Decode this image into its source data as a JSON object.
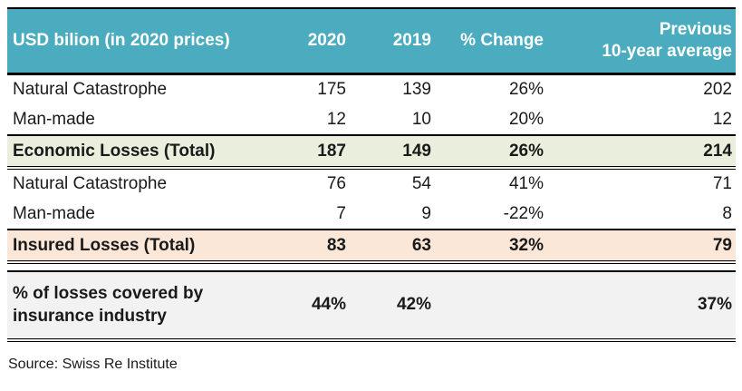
{
  "colors": {
    "header_bg": "#4AACBE",
    "header_text": "#FFFFFF",
    "economic_total_bg": "#EAEFDD",
    "insured_total_bg": "#FBE7D8",
    "coverage_bg": "#F2F2F2",
    "border": "#000000",
    "body_text": "#1A1A1A"
  },
  "source_note": "Source: Swiss Re Institute",
  "chart_data": {
    "type": "table",
    "title": "USD bilion (in 2020 prices)",
    "columns": [
      "USD bilion (in 2020 prices)",
      "2020",
      "2019",
      "% Change",
      "Previous\n10-year average"
    ],
    "rows": [
      [
        "Natural Catastrophe",
        175,
        139,
        "26%",
        202
      ],
      [
        "Man-made",
        12,
        10,
        "20%",
        12
      ],
      [
        "Economic Losses (Total)",
        187,
        149,
        "26%",
        214
      ],
      [
        "Natural Catastrophe",
        76,
        54,
        "41%",
        71
      ],
      [
        "Man-made",
        7,
        9,
        "-22%",
        8
      ],
      [
        "Insured Losses (Total)",
        83,
        63,
        "32%",
        79
      ],
      [
        "% of losses covered by\ninsurance industry",
        "44%",
        "42%",
        "",
        "37%"
      ]
    ],
    "source": "Source: Swiss Re Institute",
    "layout": {
      "numeric_alignment": "right",
      "total_rows": [
        2,
        5
      ],
      "grid": "horizontal-rules-only"
    }
  }
}
